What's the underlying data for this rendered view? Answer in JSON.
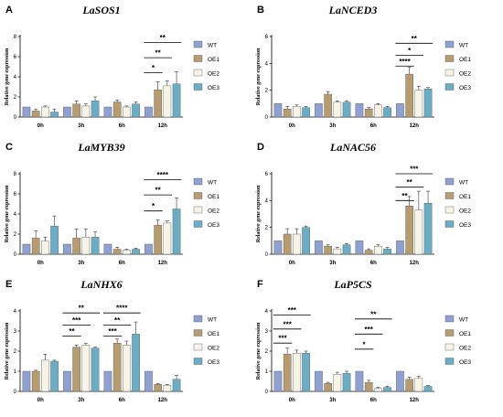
{
  "chart_data": [
    {
      "panel": "A",
      "title": "LaSOS1",
      "type": "bar",
      "ylabel": "Relative gene expression",
      "ylim": [
        0,
        8
      ],
      "yticks": [
        0,
        2,
        4,
        6,
        8
      ],
      "categories": [
        "0h",
        "3h",
        "6h",
        "12h"
      ],
      "legend": {
        "placement": "right"
      },
      "series": [
        {
          "name": "WT",
          "color": "#8fa0d2",
          "values": [
            1.0,
            1.0,
            1.0,
            1.0
          ],
          "errors": [
            0.0,
            0.0,
            0.0,
            0.0
          ]
        },
        {
          "name": "OE1",
          "color": "#b69c6e",
          "values": [
            0.6,
            1.3,
            1.5,
            2.7
          ],
          "errors": [
            0.2,
            0.3,
            0.2,
            0.8
          ]
        },
        {
          "name": "OE2",
          "color": "#f7f3e6",
          "values": [
            1.0,
            1.1,
            1.0,
            3.1
          ],
          "errors": [
            0.1,
            0.2,
            0.1,
            0.5
          ]
        },
        {
          "name": "OE3",
          "color": "#6aaec6",
          "values": [
            0.5,
            1.6,
            1.3,
            3.3
          ],
          "errors": [
            0.3,
            0.4,
            0.2,
            1.2
          ]
        }
      ],
      "significance": [
        {
          "group": 3,
          "from": 0,
          "to": 3,
          "y": 7.4,
          "label": "**"
        },
        {
          "group": 3,
          "from": 0,
          "to": 2,
          "y": 5.9,
          "label": "**"
        },
        {
          "group": 3,
          "from": 0,
          "to": 1,
          "y": 4.4,
          "label": "*"
        }
      ]
    },
    {
      "panel": "B",
      "title": "LaNCED3",
      "type": "bar",
      "ylabel": "Relative gene expression",
      "ylim": [
        0,
        6
      ],
      "yticks": [
        0,
        2,
        4,
        6
      ],
      "categories": [
        "0h",
        "3h",
        "6h",
        "12h"
      ],
      "legend": {
        "placement": "right"
      },
      "series": [
        {
          "name": "WT",
          "color": "#8fa0d2",
          "values": [
            1.0,
            1.0,
            1.0,
            1.0
          ],
          "errors": [
            0.0,
            0.0,
            0.0,
            0.0
          ]
        },
        {
          "name": "OE1",
          "color": "#b69c6e",
          "values": [
            0.6,
            1.7,
            0.6,
            3.2
          ],
          "errors": [
            0.2,
            0.2,
            0.1,
            0.5
          ]
        },
        {
          "name": "OE2",
          "color": "#f7f3e6",
          "values": [
            0.8,
            1.1,
            0.9,
            2.0
          ],
          "errors": [
            0.1,
            0.1,
            0.1,
            0.3
          ]
        },
        {
          "name": "OE3",
          "color": "#6aaec6",
          "values": [
            0.7,
            1.1,
            0.7,
            2.1
          ],
          "errors": [
            0.1,
            0.1,
            0.1,
            0.1
          ]
        }
      ],
      "significance": [
        {
          "group": 3,
          "from": 0,
          "to": 3,
          "y": 5.5,
          "label": "**"
        },
        {
          "group": 3,
          "from": 0,
          "to": 2,
          "y": 4.6,
          "label": "*"
        },
        {
          "group": 3,
          "from": 0,
          "to": 1,
          "y": 3.8,
          "label": "****"
        }
      ]
    },
    {
      "panel": "C",
      "title": "LaMYB39",
      "type": "bar",
      "ylabel": "Relative gene expression",
      "ylim": [
        0,
        8
      ],
      "yticks": [
        0,
        2,
        4,
        6,
        8
      ],
      "categories": [
        "0h",
        "3h",
        "6h",
        "12h"
      ],
      "legend": {
        "placement": "right"
      },
      "series": [
        {
          "name": "WT",
          "color": "#8fa0d2",
          "values": [
            1.0,
            1.0,
            1.0,
            1.0
          ],
          "errors": [
            0.0,
            0.0,
            0.0,
            0.0
          ]
        },
        {
          "name": "OE1",
          "color": "#b69c6e",
          "values": [
            1.6,
            1.6,
            0.5,
            2.9
          ],
          "errors": [
            0.7,
            0.9,
            0.2,
            0.5
          ]
        },
        {
          "name": "OE2",
          "color": "#f7f3e6",
          "values": [
            1.3,
            1.7,
            0.4,
            3.1
          ],
          "errors": [
            0.4,
            0.8,
            0.1,
            0.2
          ]
        },
        {
          "name": "OE3",
          "color": "#6aaec6",
          "values": [
            2.8,
            1.7,
            0.5,
            4.5
          ],
          "errors": [
            1.0,
            0.5,
            0.1,
            1.1
          ]
        }
      ],
      "significance": [
        {
          "group": 3,
          "from": 0,
          "to": 3,
          "y": 7.4,
          "label": "****"
        },
        {
          "group": 3,
          "from": 0,
          "to": 2,
          "y": 5.9,
          "label": "**"
        },
        {
          "group": 3,
          "from": 0,
          "to": 1,
          "y": 4.3,
          "label": "*"
        }
      ]
    },
    {
      "panel": "D",
      "title": "LaNAC56",
      "type": "bar",
      "ylabel": "Relative gene expression",
      "ylim": [
        0,
        6
      ],
      "yticks": [
        0,
        2,
        4,
        6
      ],
      "categories": [
        "0h",
        "3h",
        "6h",
        "12h"
      ],
      "legend": {
        "placement": "right"
      },
      "series": [
        {
          "name": "WT",
          "color": "#8fa0d2",
          "values": [
            1.0,
            1.0,
            1.0,
            1.0
          ],
          "errors": [
            0.0,
            0.0,
            0.0,
            0.0
          ]
        },
        {
          "name": "OE1",
          "color": "#b69c6e",
          "values": [
            1.5,
            0.6,
            0.3,
            3.6
          ],
          "errors": [
            0.4,
            0.1,
            0.1,
            0.7
          ]
        },
        {
          "name": "OE2",
          "color": "#f7f3e6",
          "values": [
            1.5,
            0.4,
            0.6,
            3.3
          ],
          "errors": [
            0.4,
            0.1,
            0.1,
            1.4
          ]
        },
        {
          "name": "OE3",
          "color": "#6aaec6",
          "values": [
            2.0,
            0.7,
            0.4,
            3.8
          ],
          "errors": [
            0.1,
            0.1,
            0.1,
            0.9
          ]
        }
      ],
      "significance": [
        {
          "group": 3,
          "from": 0,
          "to": 3,
          "y": 6.0,
          "label": "***"
        },
        {
          "group": 3,
          "from": 0,
          "to": 2,
          "y": 5.0,
          "label": "**"
        },
        {
          "group": 3,
          "from": 0,
          "to": 1,
          "y": 4.0,
          "label": "**"
        }
      ]
    },
    {
      "panel": "E",
      "title": "LaNHX6",
      "type": "bar",
      "ylabel": "Relative gene expression",
      "ylim": [
        0,
        4
      ],
      "yticks": [
        0,
        1,
        2,
        3,
        4
      ],
      "categories": [
        "0h",
        "3h",
        "6h",
        "12h"
      ],
      "legend": {
        "placement": "right"
      },
      "series": [
        {
          "name": "WT",
          "color": "#8fa0d2",
          "values": [
            1.0,
            1.0,
            1.0,
            1.0
          ],
          "errors": [
            0.0,
            0.0,
            0.0,
            0.0
          ]
        },
        {
          "name": "OE1",
          "color": "#b69c6e",
          "values": [
            1.0,
            2.2,
            2.4,
            0.35
          ],
          "errors": [
            0.05,
            0.1,
            0.2,
            0.05
          ]
        },
        {
          "name": "OE2",
          "color": "#f7f3e6",
          "values": [
            1.55,
            2.3,
            2.3,
            0.3
          ],
          "errors": [
            0.3,
            0.08,
            0.2,
            0.05
          ]
        },
        {
          "name": "OE3",
          "color": "#6aaec6",
          "values": [
            1.5,
            2.15,
            2.85,
            0.6
          ],
          "errors": [
            0.05,
            0.05,
            0.6,
            0.2
          ]
        }
      ],
      "significance": [
        {
          "group": 1,
          "from": 0,
          "to": 3,
          "y": 3.9,
          "label": "**"
        },
        {
          "group": 1,
          "from": 0,
          "to": 2,
          "y": 3.3,
          "label": "***"
        },
        {
          "group": 1,
          "from": 0,
          "to": 1,
          "y": 2.75,
          "label": "**"
        },
        {
          "group": 2,
          "from": 0,
          "to": 3,
          "y": 3.9,
          "label": "****"
        },
        {
          "group": 2,
          "from": 0,
          "to": 2,
          "y": 3.3,
          "label": "**"
        },
        {
          "group": 2,
          "from": 0,
          "to": 1,
          "y": 2.75,
          "label": "***"
        }
      ]
    },
    {
      "panel": "F",
      "title": "LaP5CS",
      "type": "bar",
      "ylabel": "Relative gene expression",
      "ylim": [
        0,
        4
      ],
      "yticks": [
        0,
        1,
        2,
        3,
        4
      ],
      "categories": [
        "0h",
        "3h",
        "6h",
        "12h"
      ],
      "legend": {
        "placement": "right"
      },
      "series": [
        {
          "name": "WT",
          "color": "#8fa0d2",
          "values": [
            1.0,
            1.0,
            1.0,
            1.0
          ],
          "errors": [
            0.0,
            0.0,
            0.0,
            0.0
          ]
        },
        {
          "name": "OE1",
          "color": "#b69c6e",
          "values": [
            1.85,
            0.4,
            0.45,
            0.6
          ],
          "errors": [
            0.3,
            0.05,
            0.1,
            0.1
          ]
        },
        {
          "name": "OE2",
          "color": "#f7f3e6",
          "values": [
            1.9,
            0.85,
            0.15,
            0.65
          ],
          "errors": [
            0.15,
            0.1,
            0.05,
            0.1
          ]
        },
        {
          "name": "OE3",
          "color": "#6aaec6",
          "values": [
            1.9,
            0.9,
            0.2,
            0.25
          ],
          "errors": [
            0.1,
            0.1,
            0.05,
            0.05
          ]
        }
      ],
      "significance": [
        {
          "group": 0,
          "from": 0,
          "to": 3,
          "y": 3.8,
          "label": "***"
        },
        {
          "group": 0,
          "from": 0,
          "to": 2,
          "y": 3.1,
          "label": "***"
        },
        {
          "group": 0,
          "from": 0,
          "to": 1,
          "y": 2.4,
          "label": "***"
        },
        {
          "group": 2,
          "from": 0,
          "to": 3,
          "y": 3.6,
          "label": "**"
        },
        {
          "group": 2,
          "from": 0,
          "to": 2,
          "y": 2.85,
          "label": "***"
        },
        {
          "group": 2,
          "from": 0,
          "to": 1,
          "y": 2.1,
          "label": "*"
        }
      ]
    }
  ]
}
